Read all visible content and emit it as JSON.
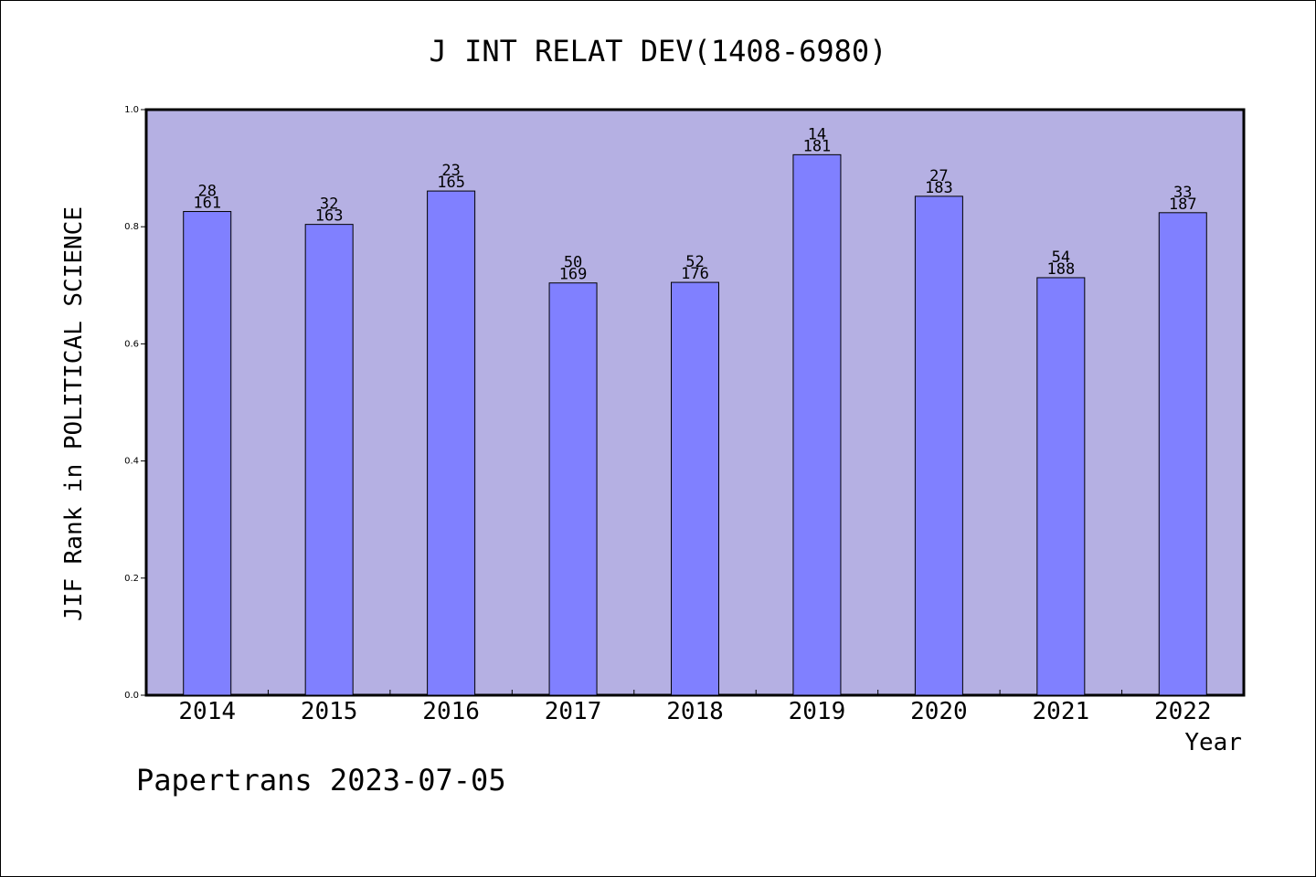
{
  "chart_data": {
    "type": "bar",
    "title": "J INT RELAT DEV(1408-6980)",
    "xlabel": "Year",
    "ylabel": "JIF Rank in POLITICAL SCIENCE",
    "footer": "Papertrans 2023-07-05",
    "categories": [
      "2014",
      "2015",
      "2016",
      "2017",
      "2018",
      "2019",
      "2020",
      "2021",
      "2022"
    ],
    "values": [
      0.826,
      0.804,
      0.861,
      0.704,
      0.705,
      0.923,
      0.852,
      0.713,
      0.824
    ],
    "rank": [
      "28",
      "32",
      "23",
      "50",
      "52",
      "14",
      "27",
      "54",
      "33"
    ],
    "total": [
      "161",
      "163",
      "165",
      "169",
      "176",
      "181",
      "183",
      "188",
      "187"
    ],
    "ylim": [
      0,
      1.0
    ],
    "yticks": [
      "0.0",
      "0.2",
      "0.4",
      "0.6",
      "0.8",
      "1.0"
    ],
    "grid": false,
    "colors": {
      "plot_bg": "#b5b0e3",
      "bar": "#8080ff",
      "axis": "#000000"
    }
  }
}
